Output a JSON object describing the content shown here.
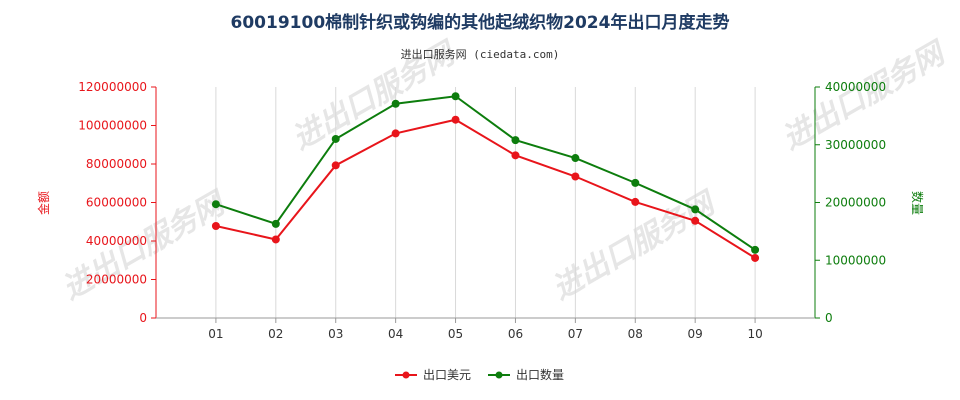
{
  "chart_data": {
    "type": "line",
    "title": "60019100棉制针织或钩编的其他起绒织物2024年出口月度走势",
    "subtitle": "进出口服务网 (ciedata.com)",
    "watermark": "进出口服务网",
    "categories": [
      "01",
      "02",
      "03",
      "04",
      "05",
      "06",
      "07",
      "08",
      "09",
      "10"
    ],
    "y_left": {
      "label": "金额",
      "range": [
        0,
        120000000
      ],
      "ticks": [
        "0",
        "20000000",
        "40000000",
        "60000000",
        "80000000",
        "100000000",
        "120000000"
      ]
    },
    "y_right": {
      "label": "数量",
      "range": [
        0,
        40000000
      ],
      "ticks": [
        "0",
        "10000000",
        "20000000",
        "30000000",
        "40000000"
      ]
    },
    "series": [
      {
        "name": "出口美元",
        "axis": "left",
        "color": "#e8151b",
        "values": [
          47800000,
          40800000,
          79300000,
          95900000,
          103000000,
          84500000,
          73500000,
          60300000,
          50500000,
          31200000
        ]
      },
      {
        "name": "出口数量",
        "axis": "right",
        "color": "#0d7d0d",
        "values": [
          19700000,
          16300000,
          31000000,
          37100000,
          38400000,
          30800000,
          27700000,
          23400000,
          18800000,
          11800000
        ]
      }
    ],
    "grid": "vertical",
    "legend": "bottom-center"
  }
}
